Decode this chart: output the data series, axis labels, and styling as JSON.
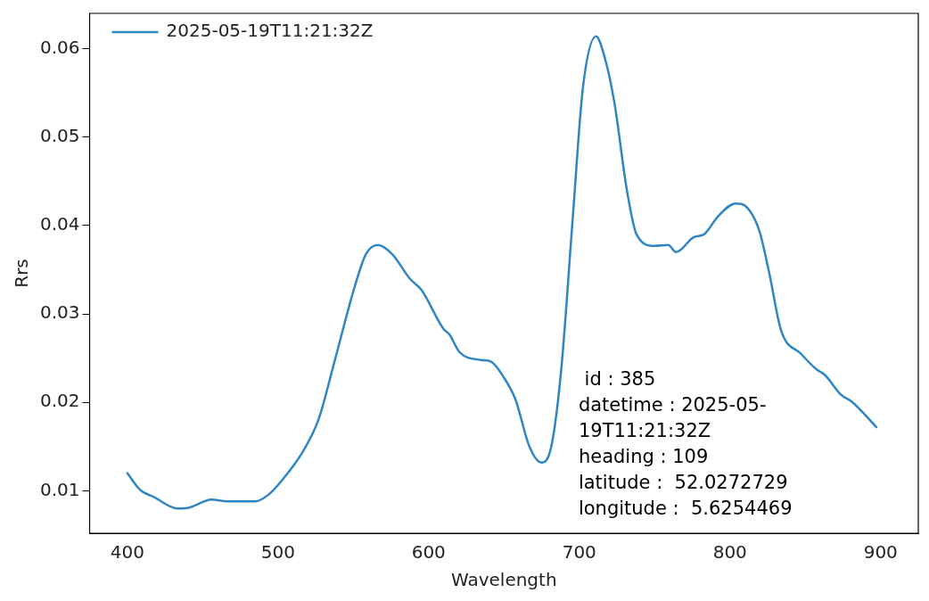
{
  "chart_data": {
    "type": "line",
    "xlabel": "Wavelength",
    "ylabel": "Rrs",
    "xlim": [
      375,
      925
    ],
    "ylim": [
      0.0052,
      0.064
    ],
    "xticks": [
      400,
      500,
      600,
      700,
      800,
      900
    ],
    "yticks": [
      0.01,
      0.02,
      0.03,
      0.04,
      0.05,
      0.06
    ],
    "grid": false,
    "legend": "top left",
    "marker": "none",
    "line_style": "solid",
    "series": [
      {
        "name": "2025-05-19T11:21:32Z",
        "color": "#2f86c3",
        "x": [
          400,
          408.5,
          417.6,
          433.4,
          441.3,
          455.8,
          466.4,
          484.8,
          494,
          503.2,
          516.4,
          527,
          537.5,
          550.6,
          558.5,
          566.4,
          575.6,
          587.5,
          595.3,
          609.9,
          613.8,
          620.4,
          634.8,
          641.5,
          650,
          657.7,
          666.9,
          674.8,
          681.4,
          688,
          695.8,
          702.4,
          711.1,
          716.9,
          723.4,
          731.4,
          738,
          749.8,
          759,
          764.2,
          776.1,
          782.7,
          791.9,
          803.7,
          811.6,
          819.5,
          826.1,
          834,
          847.1,
          857.7,
          863,
          873.5,
          881.4,
          897.2
        ],
        "values": [
          0.012,
          0.0101,
          0.0093,
          0.008,
          0.0081,
          0.009,
          0.0088,
          0.0088,
          0.0096,
          0.0113,
          0.0144,
          0.0181,
          0.0246,
          0.0329,
          0.0368,
          0.0378,
          0.0368,
          0.034,
          0.0327,
          0.0283,
          0.0277,
          0.0257,
          0.0248,
          0.0246,
          0.0228,
          0.0203,
          0.015,
          0.0132,
          0.015,
          0.0237,
          0.0412,
          0.0556,
          0.0614,
          0.059,
          0.0538,
          0.0442,
          0.039,
          0.0377,
          0.0378,
          0.037,
          0.0387,
          0.039,
          0.041,
          0.0425,
          0.042,
          0.0394,
          0.0346,
          0.0281,
          0.0255,
          0.0237,
          0.0231,
          0.0209,
          0.02,
          0.0172
        ]
      }
    ],
    "annotations": [
      " id : 385\ndatetime : 2025-05-\n19T11:21:32Z\nheading : 109\nlatitude :  52.0272729\nlongitude :  5.6254469"
    ]
  }
}
